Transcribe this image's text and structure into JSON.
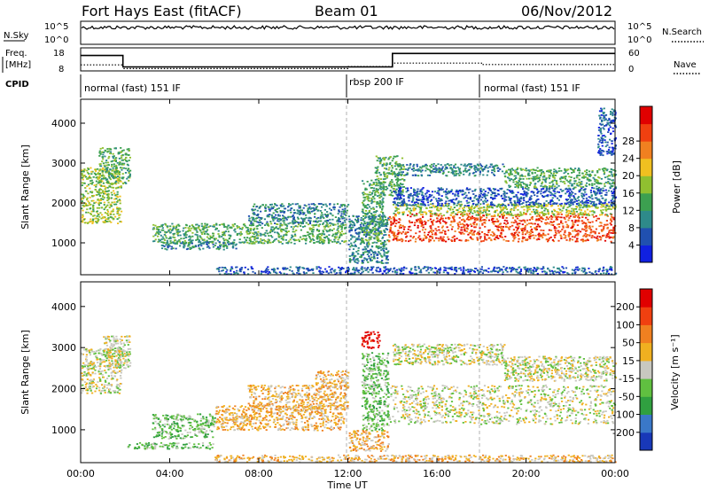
{
  "header": {
    "station": "Fort Hays East (fitACF)",
    "beam": "Beam 01",
    "date": "06/Nov/2012"
  },
  "param_panels": {
    "nsky_label": "N.Sky",
    "nsearch_label": "N.Search",
    "nsky_ticks": [
      "10^5",
      "10^0"
    ],
    "nsearch_ticks": [
      "10^5",
      "10^0"
    ],
    "freq_label": [
      "Freq.",
      "[MHz]"
    ],
    "freq_ticks": [
      "18",
      "8"
    ],
    "nave_label": "Nave",
    "nave_ticks": [
      "60",
      "0"
    ],
    "cpid_label": "CPID",
    "cpid_segments": [
      {
        "text": "normal (fast) 151 IF",
        "start_h": 0,
        "end_h": 12
      },
      {
        "text": "rbsp 200 IF",
        "start_h": 12,
        "end_h": 18
      },
      {
        "text": "normal (fast) 151 IF",
        "start_h": 18,
        "end_h": 24
      }
    ],
    "freq_steps": [
      [
        0,
        15
      ],
      [
        1.9,
        9.5
      ],
      [
        12,
        9.5
      ],
      [
        14,
        16
      ],
      [
        24,
        16
      ]
    ],
    "nave_steps": [
      [
        0,
        15
      ],
      [
        1.9,
        4
      ],
      [
        12,
        10
      ],
      [
        14,
        20
      ],
      [
        18,
        16
      ],
      [
        24,
        16
      ]
    ]
  },
  "chart_data": [
    {
      "type": "heatmap",
      "title": "Power",
      "xlabel": "Time UT",
      "ylabel": "Slant Range [km]",
      "xlim": [
        0,
        24
      ],
      "ylim": [
        200,
        4600
      ],
      "y_ticks": [
        1000,
        2000,
        3000,
        4000
      ],
      "colorbar": {
        "label": "Power [dB]",
        "ticks": [
          "4",
          "8",
          "12",
          "16",
          "20",
          "24",
          "28"
        ],
        "colors": [
          "#1020e0",
          "#2050b0",
          "#2e8a8a",
          "#3ca050",
          "#90c030",
          "#f0c020",
          "#f08020",
          "#f04010",
          "#e00000"
        ]
      },
      "bands": [
        {
          "t0": 0,
          "t1": 1.8,
          "r0": 1500,
          "r1": 2900,
          "level": 4
        },
        {
          "t0": 0.8,
          "t1": 2.2,
          "r0": 2500,
          "r1": 3400,
          "level": 3
        },
        {
          "t0": 3.2,
          "t1": 11.9,
          "r0": 1000,
          "r1": 1500,
          "level": 3
        },
        {
          "t0": 3.6,
          "t1": 7.0,
          "r0": 850,
          "r1": 1050,
          "level": 2
        },
        {
          "t0": 7.5,
          "t1": 12.0,
          "r0": 1500,
          "r1": 2000,
          "level": 2
        },
        {
          "t0": 12.0,
          "t1": 13.8,
          "r0": 500,
          "r1": 1700,
          "level": 2
        },
        {
          "t0": 12.6,
          "t1": 13.6,
          "r0": 1000,
          "r1": 2600,
          "level": 3
        },
        {
          "t0": 13.2,
          "t1": 14.5,
          "r0": 2200,
          "r1": 3200,
          "level": 3
        },
        {
          "t0": 13.8,
          "t1": 24.0,
          "r0": 1050,
          "r1": 1750,
          "level": 7
        },
        {
          "t0": 14.0,
          "t1": 24.0,
          "r0": 1700,
          "r1": 2000,
          "level": 4
        },
        {
          "t0": 14.0,
          "t1": 24.0,
          "r0": 1950,
          "r1": 2400,
          "level": 1
        },
        {
          "t0": 14.0,
          "t1": 19.0,
          "r0": 2700,
          "r1": 3000,
          "level": 2
        },
        {
          "t0": 19.0,
          "t1": 24.0,
          "r0": 2400,
          "r1": 2900,
          "level": 3
        },
        {
          "t0": 23.2,
          "t1": 24.0,
          "r0": 3200,
          "r1": 4400,
          "level": 1
        },
        {
          "t0": 6.0,
          "t1": 24.0,
          "r0": 230,
          "r1": 420,
          "level": 1
        }
      ]
    },
    {
      "type": "heatmap",
      "title": "Velocity",
      "xlabel": "Time UT",
      "ylabel": "Slant Range [km]",
      "xlim": [
        0,
        24
      ],
      "ylim": [
        200,
        4600
      ],
      "y_ticks": [
        1000,
        2000,
        3000,
        4000
      ],
      "x_ticks": [
        "00:00",
        "04:00",
        "08:00",
        "12:00",
        "16:00",
        "20:00",
        "00:00"
      ],
      "colorbar": {
        "label": "Velocity [m s⁻¹]",
        "ticks": [
          "200",
          "100",
          "50",
          "15",
          "-15",
          "-50",
          "-100",
          "-200"
        ],
        "colors": [
          "#1838b8",
          "#3a78c8",
          "#30a040",
          "#60c040",
          "#c8c8c0",
          "#f0b020",
          "#f08020",
          "#f04010",
          "#e00000"
        ]
      },
      "bands": [
        {
          "t0": 0,
          "t1": 1.8,
          "r0": 1900,
          "r1": 3000,
          "level": 4
        },
        {
          "t0": 1.0,
          "t1": 2.2,
          "r0": 2500,
          "r1": 3300,
          "level": 4
        },
        {
          "t0": 3.2,
          "t1": 6.0,
          "r0": 800,
          "r1": 1400,
          "level": 3
        },
        {
          "t0": 6.0,
          "t1": 11.8,
          "r0": 1000,
          "r1": 1600,
          "level": 5
        },
        {
          "t0": 7.5,
          "t1": 12.0,
          "r0": 1500,
          "r1": 2100,
          "level": 5
        },
        {
          "t0": 10.5,
          "t1": 12.0,
          "r0": 2050,
          "r1": 2450,
          "level": 5
        },
        {
          "t0": 12.0,
          "t1": 13.8,
          "r0": 500,
          "r1": 1000,
          "level": 5
        },
        {
          "t0": 12.6,
          "t1": 13.8,
          "r0": 1000,
          "r1": 2900,
          "level": 3
        },
        {
          "t0": 13.8,
          "t1": 24.0,
          "r0": 1150,
          "r1": 2100,
          "level": 4
        },
        {
          "t0": 14.0,
          "t1": 19.0,
          "r0": 2600,
          "r1": 3100,
          "level": 4
        },
        {
          "t0": 19.0,
          "t1": 24.0,
          "r0": 2200,
          "r1": 2800,
          "level": 4
        },
        {
          "t0": 12.6,
          "t1": 13.4,
          "r0": 3000,
          "r1": 3400,
          "level": 8
        },
        {
          "t0": 2.0,
          "t1": 6.0,
          "r0": 550,
          "r1": 700,
          "level": 3
        },
        {
          "t0": 6.0,
          "t1": 24.0,
          "r0": 230,
          "r1": 400,
          "level": 5
        }
      ]
    }
  ]
}
